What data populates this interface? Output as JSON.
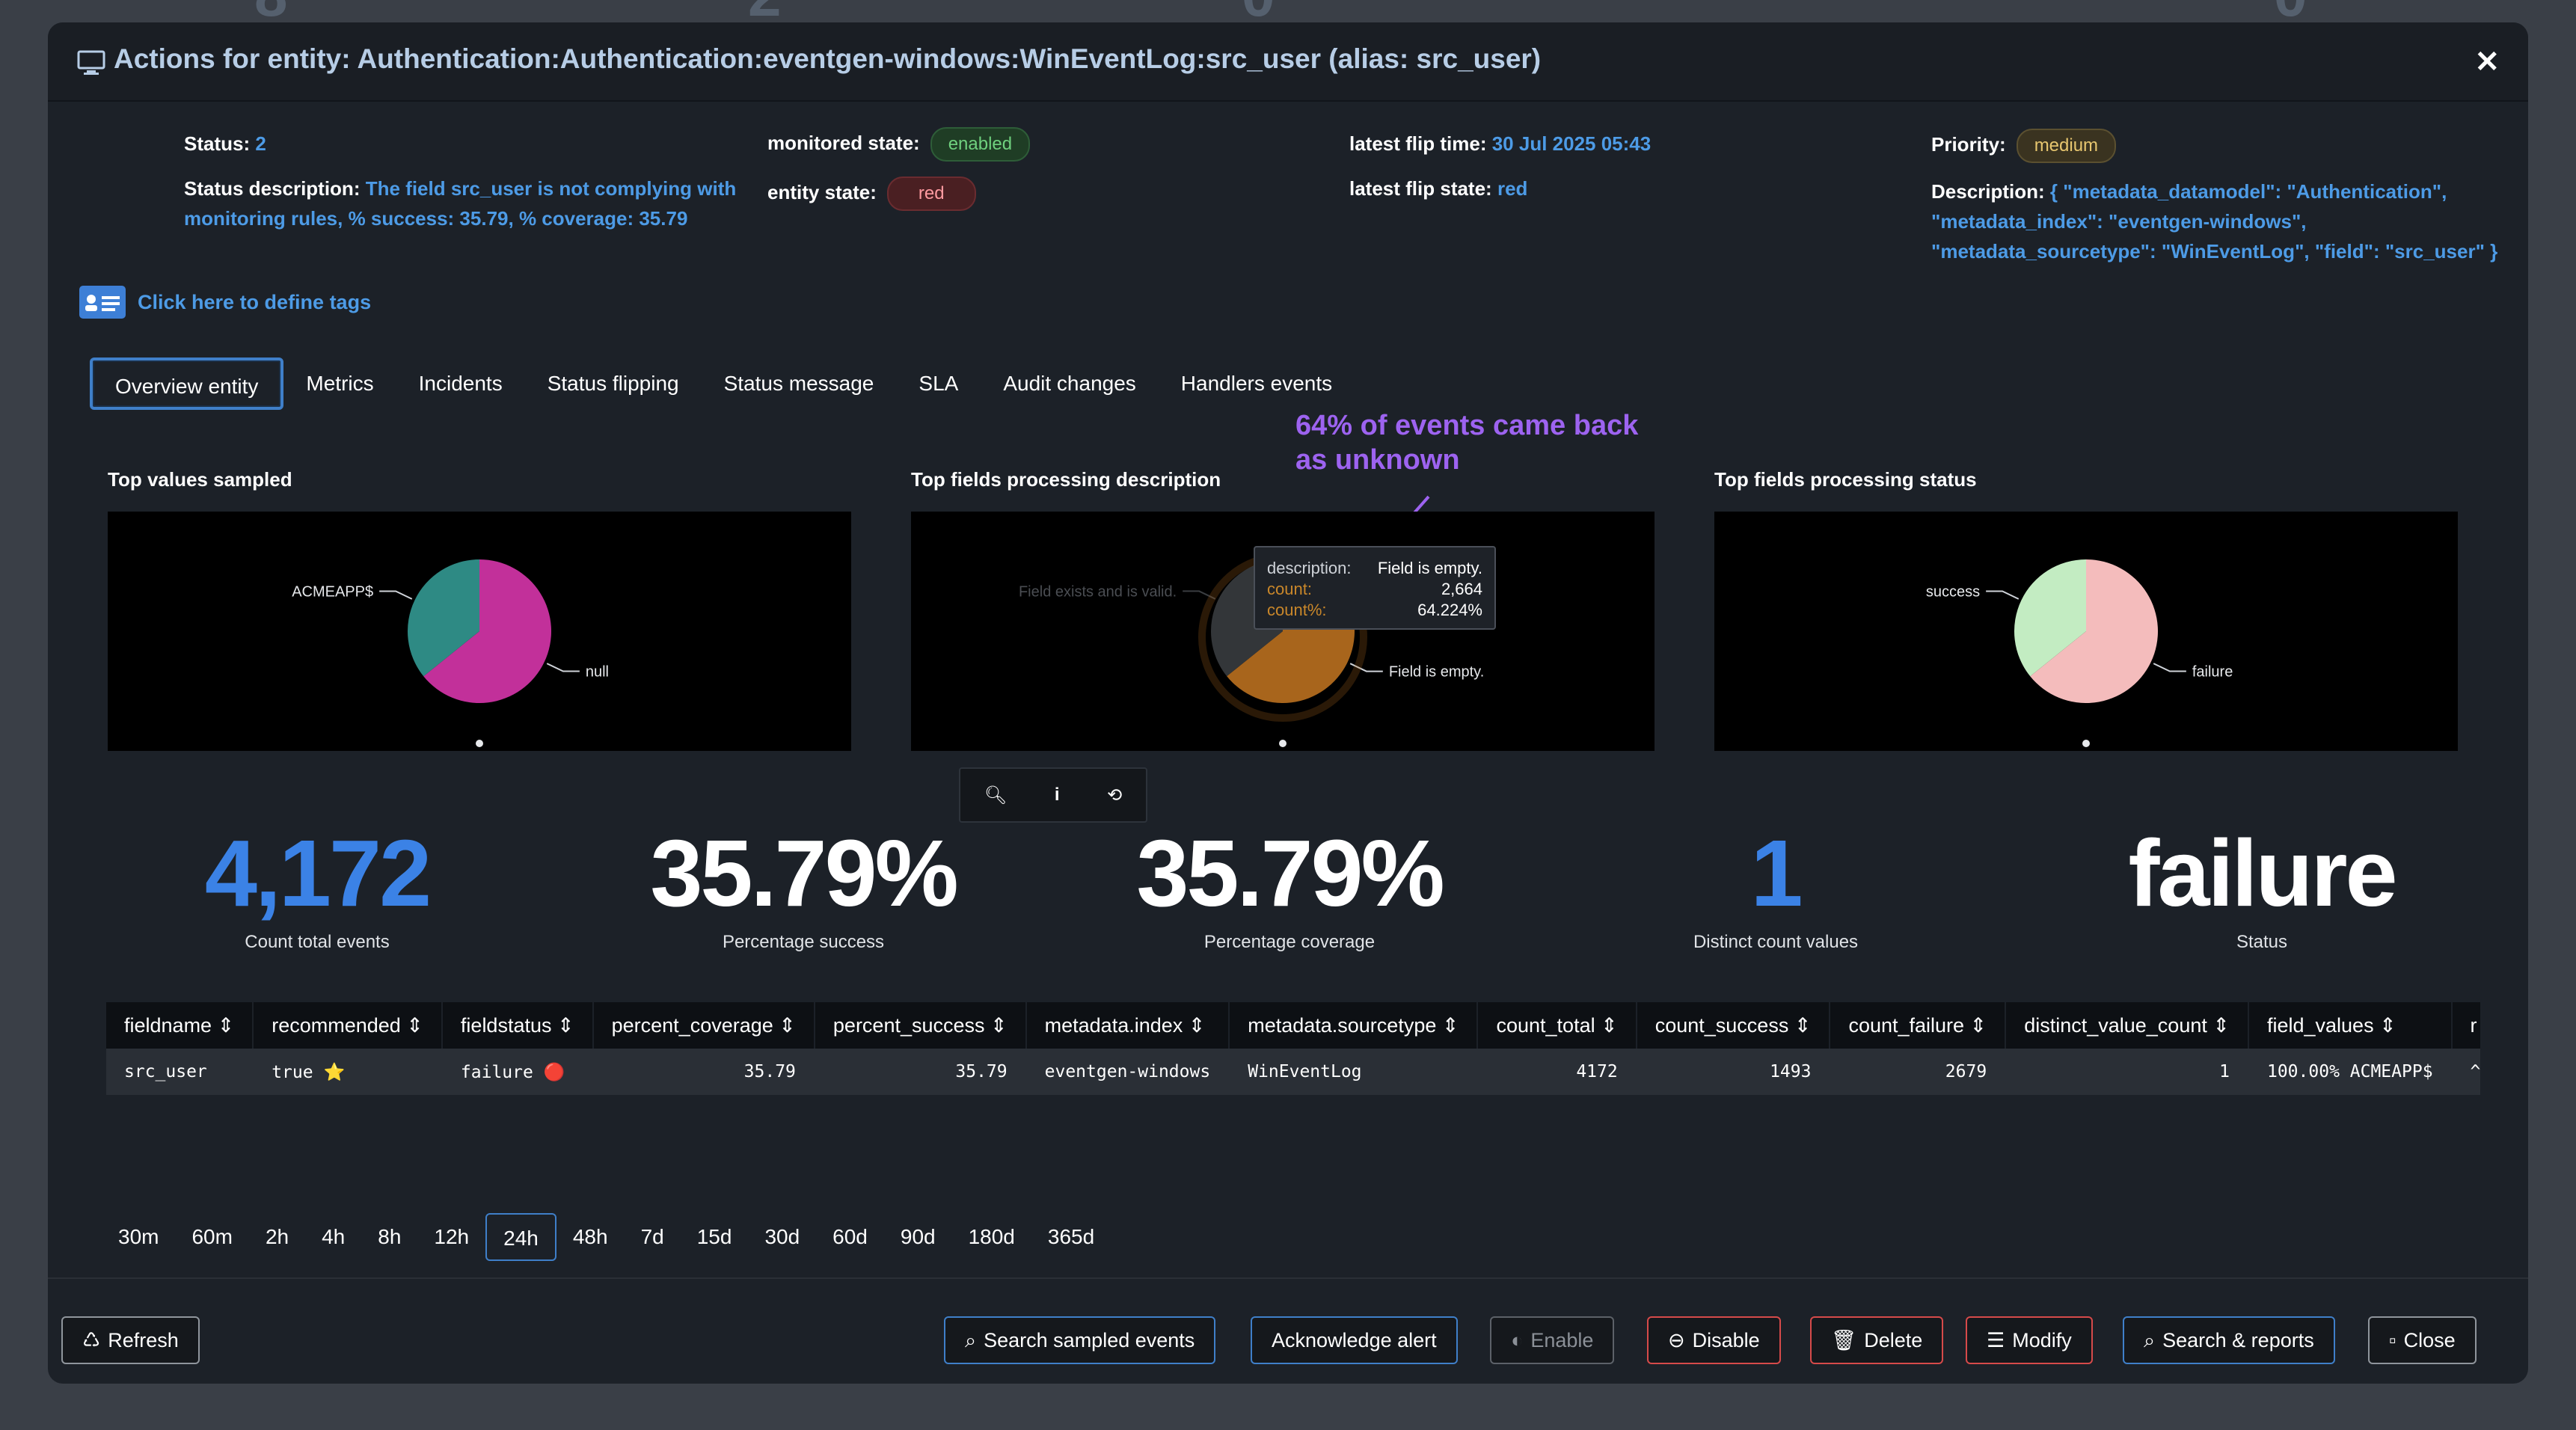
{
  "header": {
    "title": "Actions for entity: Authentication:Authentication:eventgen-windows:WinEventLog:src_user (alias: src_user)"
  },
  "info": {
    "status_label": "Status:",
    "status_value": "2",
    "status_desc_label": "Status description:",
    "status_desc_value_1": "The field src_user is not complying with",
    "status_desc_value_2": "monitoring rules, % success: 35.79, % coverage: 35.79",
    "monitored_label": "monitored state:",
    "monitored_value": "enabled",
    "entity_state_label": "entity state:",
    "entity_state_value": "red",
    "flip_time_label": "latest flip time:",
    "flip_time_value": "30 Jul 2025 05:43",
    "flip_state_label": "latest flip state:",
    "flip_state_value": "red",
    "priority_label": "Priority:",
    "priority_value": "medium",
    "description_label": "Description:",
    "description_1": "{ \"metadata_datamodel\": \"Authentication\",",
    "description_2": "\"metadata_index\": \"eventgen-windows\",",
    "description_3": "\"metadata_sourcetype\": \"WinEventLog\", \"field\": \"src_user\" }"
  },
  "tags_link": "Click here to define tags",
  "tabs": [
    "Overview entity",
    "Metrics",
    "Incidents",
    "Status flipping",
    "Status message",
    "SLA",
    "Audit changes",
    "Handlers events"
  ],
  "annotation": {
    "line1": "64% of events came back",
    "line2": "as unknown"
  },
  "chart_data": [
    {
      "type": "pie",
      "title": "Top values sampled",
      "slices": [
        {
          "label": "null",
          "value": 64.2,
          "color": "#c2309a"
        },
        {
          "label": "ACMEAPP$",
          "value": 35.8,
          "color": "#2e8a84"
        }
      ]
    },
    {
      "type": "pie",
      "title": "Top fields processing description",
      "slices": [
        {
          "label": "Field is empty.",
          "value": 64.224,
          "count": 2664,
          "color": "#a8651c"
        },
        {
          "label": "Field exists and is valid.",
          "value": 35.776,
          "color": "#333639"
        }
      ]
    },
    {
      "type": "pie",
      "title": "Top fields processing status",
      "slices": [
        {
          "label": "failure",
          "value": 64.2,
          "color": "#f4bcbc"
        },
        {
          "label": "success",
          "value": 35.8,
          "color": "#c3ecc2"
        }
      ]
    }
  ],
  "tooltip": {
    "desc_key": "description:",
    "desc_val": "Field is empty.",
    "count_key": "count:",
    "count_val": "2,664",
    "pct_key": "count%:",
    "pct_val": "64.224%"
  },
  "kpis": [
    {
      "value": "4,172",
      "caption": "Count total events",
      "color": "#3b82e6"
    },
    {
      "value": "35.79%",
      "caption": "Percentage success",
      "color": "#ffffff"
    },
    {
      "value": "35.79%",
      "caption": "Percentage coverage",
      "color": "#ffffff"
    },
    {
      "value": "1",
      "caption": "Distinct count values",
      "color": "#3b82e6"
    },
    {
      "value": "failure",
      "caption": "Status",
      "color": "#ffffff"
    }
  ],
  "table": {
    "headers": [
      "fieldname ⇕",
      "recommended ⇕",
      "fieldstatus ⇕",
      "percent_coverage ⇕",
      "percent_success ⇕",
      "metadata.index ⇕",
      "metadata.sourcetype ⇕",
      "count_total ⇕",
      "count_success ⇕",
      "count_failure ⇕",
      "distinct_value_count ⇕",
      "field_values ⇕",
      "r"
    ],
    "row": [
      "src_user",
      "true ⭐",
      "failure 🔴",
      "35.79",
      "35.79",
      "eventgen-windows",
      "WinEventLog",
      "4172",
      "1493",
      "2679",
      "1",
      "100.00% ACMEAPP$",
      "^"
    ]
  },
  "ranges": [
    "30m",
    "60m",
    "2h",
    "4h",
    "8h",
    "12h",
    "24h",
    "48h",
    "7d",
    "15d",
    "30d",
    "60d",
    "90d",
    "180d",
    "365d"
  ],
  "buttons": {
    "refresh": "Refresh",
    "search_sampled": "Search sampled events",
    "ack": "Acknowledge alert",
    "enable": "Enable",
    "disable": "Disable",
    "delete": "Delete",
    "modify": "Modify",
    "search_reports": "Search & reports",
    "close": "Close"
  }
}
